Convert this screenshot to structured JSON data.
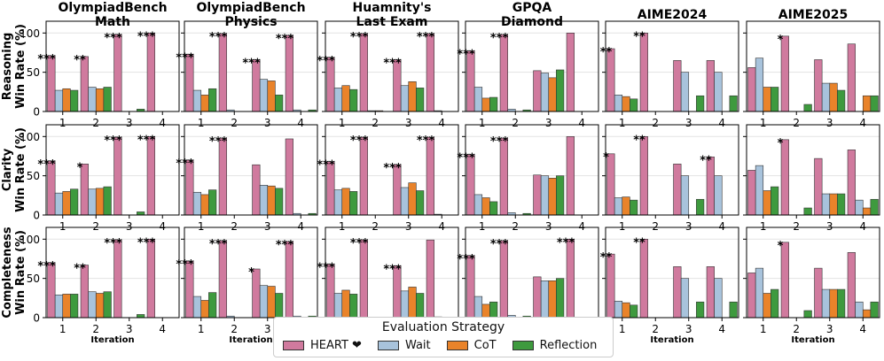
{
  "chart_data": {
    "type": "bar",
    "layout": "grid",
    "columns": [
      {
        "title": [
          "OlympiadBench",
          "Math"
        ],
        "iterations": [
          1,
          2,
          3,
          4
        ]
      },
      {
        "title": [
          "OlympiadBench",
          "Physics"
        ],
        "iterations": [
          1,
          2,
          3,
          4
        ]
      },
      {
        "title": [
          "Huamnity's",
          "Last Exam"
        ],
        "iterations": [
          1,
          2,
          3,
          4
        ]
      },
      {
        "title": [
          "GPQA",
          "Diamond"
        ],
        "iterations": [
          1,
          2,
          3,
          4
        ]
      },
      {
        "title": [
          "AIME2024"
        ],
        "iterations": [
          1,
          2,
          3,
          4
        ]
      },
      {
        "title": [
          "AIME2025"
        ],
        "iterations": [
          1,
          2,
          3,
          4
        ]
      }
    ],
    "rows": [
      {
        "ylabel": [
          "Reasoning",
          "Win Rate (%)"
        ]
      },
      {
        "ylabel": [
          "Clarity",
          "Win Rate (%)"
        ]
      },
      {
        "ylabel": [
          "Completeness",
          "Win Rate (%)"
        ]
      }
    ],
    "xlabel": "Iteration",
    "ylim": [
      0,
      115
    ],
    "yticks": [
      0,
      50,
      100
    ],
    "series": [
      {
        "name": "HEART ❤",
        "color": "#d07a9e"
      },
      {
        "name": "Wait",
        "color": "#a8c3dc"
      },
      {
        "name": "CoT",
        "color": "#e9832a"
      },
      {
        "name": "Reflection",
        "color": "#3e9a3e"
      }
    ],
    "panels": [
      [
        {
          "values": [
            [
              71,
              27,
              29,
              27
            ],
            [
              70,
              31,
              29,
              31
            ],
            [
              98,
              0,
              0,
              3
            ],
            [
              100,
              0,
              0,
              0
            ]
          ],
          "sig": [
            "***",
            "**",
            "***",
            "***"
          ]
        },
        {
          "values": [
            [
              73,
              27,
              21,
              29
            ],
            [
              99,
              2,
              0,
              0
            ],
            [
              66,
              41,
              39,
              21
            ],
            [
              97,
              2,
              0,
              2
            ]
          ],
          "sig": [
            "***",
            "***",
            "***",
            "***"
          ]
        },
        {
          "values": [
            [
              69,
              30,
              33,
              28
            ],
            [
              99,
              1,
              1,
              0
            ],
            [
              66,
              33,
              38,
              30
            ],
            [
              99,
              1,
              0,
              0
            ]
          ],
          "sig": [
            "***",
            "***",
            "***",
            "***"
          ]
        },
        {
          "values": [
            [
              77,
              31,
              17,
              18
            ],
            [
              98,
              3,
              0,
              2
            ],
            [
              52,
              49,
              43,
              53
            ],
            [
              100,
              0,
              0,
              0
            ]
          ],
          "sig": [
            "***",
            "***",
            "",
            ""
          ]
        },
        {
          "values": [
            [
              80,
              21,
              19,
              16
            ],
            [
              100,
              0,
              0,
              0
            ],
            [
              65,
              50,
              0,
              20
            ],
            [
              65,
              50,
              0,
              20
            ]
          ],
          "sig": [
            "**",
            "**",
            "",
            ""
          ]
        },
        {
          "values": [
            [
              56,
              68,
              31,
              31
            ],
            [
              96,
              0,
              0,
              9
            ],
            [
              66,
              36,
              36,
              27
            ],
            [
              86,
              0,
              20,
              20
            ]
          ],
          "sig": [
            "",
            "*",
            "",
            ""
          ]
        }
      ],
      [
        {
          "values": [
            [
              69,
              28,
              30,
              33
            ],
            [
              65,
              33,
              34,
              36
            ],
            [
              99,
              0,
              0,
              4
            ],
            [
              100,
              0,
              0,
              0
            ]
          ],
          "sig": [
            "***",
            "*",
            "***",
            "***"
          ]
        },
        {
          "values": [
            [
              70,
              29,
              26,
              32
            ],
            [
              98,
              0,
              0,
              0
            ],
            [
              64,
              38,
              37,
              34
            ],
            [
              97,
              2,
              0,
              2
            ]
          ],
          "sig": [
            "***",
            "***",
            "",
            ""
          ]
        },
        {
          "values": [
            [
              68,
              32,
              34,
              30
            ],
            [
              99,
              0,
              0,
              0
            ],
            [
              64,
              35,
              41,
              31
            ],
            [
              99,
              1,
              0,
              0
            ]
          ],
          "sig": [
            "***",
            "***",
            "***",
            "***"
          ]
        },
        {
          "values": [
            [
              77,
              26,
              22,
              17
            ],
            [
              98,
              3,
              0,
              2
            ],
            [
              51,
              50,
              47,
              50
            ],
            [
              100,
              0,
              0,
              0
            ]
          ],
          "sig": [
            "***",
            "***",
            "",
            ""
          ]
        },
        {
          "values": [
            [
              78,
              22,
              23,
              19
            ],
            [
              100,
              0,
              0,
              0
            ],
            [
              65,
              50,
              0,
              20
            ],
            [
              74,
              50,
              0,
              0
            ]
          ],
          "sig": [
            "*",
            "**",
            "",
            "**"
          ]
        },
        {
          "values": [
            [
              57,
              63,
              31,
              36
            ],
            [
              96,
              0,
              0,
              9
            ],
            [
              72,
              27,
              27,
              27
            ],
            [
              83,
              19,
              9,
              20
            ]
          ],
          "sig": [
            "",
            "*",
            "",
            ""
          ]
        }
      ],
      [
        {
          "values": [
            [
              70,
              29,
              30,
              30
            ],
            [
              67,
              33,
              31,
              33
            ],
            [
              99,
              0,
              0,
              4
            ],
            [
              100,
              0,
              0,
              0
            ]
          ],
          "sig": [
            "***",
            "**",
            "***",
            "***"
          ]
        },
        {
          "values": [
            [
              72,
              27,
              22,
              32
            ],
            [
              98,
              2,
              0,
              0
            ],
            [
              62,
              41,
              40,
              31
            ],
            [
              97,
              2,
              0,
              2
            ]
          ],
          "sig": [
            "***",
            "***",
            "*",
            "***"
          ]
        },
        {
          "values": [
            [
              68,
              31,
              35,
              30
            ],
            [
              99,
              0,
              0,
              0
            ],
            [
              66,
              34,
              39,
              31
            ],
            [
              99,
              1,
              0,
              0
            ]
          ],
          "sig": [
            "***",
            "***",
            "***",
            ""
          ]
        },
        {
          "values": [
            [
              79,
              27,
              17,
              20
            ],
            [
              98,
              3,
              0,
              2
            ],
            [
              52,
              47,
              47,
              50
            ],
            [
              100,
              0,
              0,
              0
            ]
          ],
          "sig": [
            "***",
            "***",
            "",
            "***"
          ]
        },
        {
          "values": [
            [
              81,
              21,
              19,
              16
            ],
            [
              100,
              0,
              0,
              0
            ],
            [
              65,
              50,
              0,
              20
            ],
            [
              65,
              50,
              0,
              20
            ]
          ],
          "sig": [
            "**",
            "**",
            "",
            ""
          ]
        },
        {
          "values": [
            [
              57,
              63,
              31,
              36
            ],
            [
              96,
              0,
              0,
              9
            ],
            [
              63,
              36,
              36,
              36
            ],
            [
              83,
              20,
              10,
              20
            ]
          ],
          "sig": [
            "",
            "*",
            "",
            ""
          ]
        }
      ]
    ],
    "legend": {
      "title": "Evaluation Strategy",
      "position": "bottom-center"
    }
  }
}
